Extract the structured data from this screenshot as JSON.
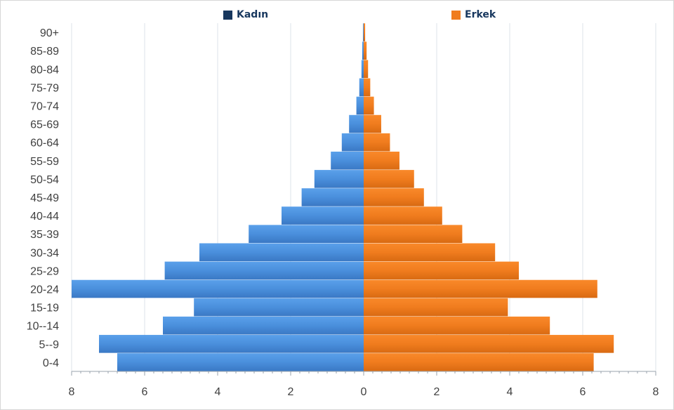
{
  "chart_data": {
    "type": "bar",
    "orientation": "horizontal",
    "layout": "population-pyramid",
    "categories": [
      "0-4",
      "5--9",
      "10--14",
      "15-19",
      "20-24",
      "25-29",
      "30-34",
      "35-39",
      "40-44",
      "45-49",
      "50-54",
      "55-59",
      "60-64",
      "65-69",
      "70-74",
      "75-79",
      "80-84",
      "85-89",
      "90+"
    ],
    "series": [
      {
        "name": "Kadın",
        "color": "#4a8fdc",
        "side": "left",
        "values": [
          6.75,
          7.25,
          5.5,
          4.65,
          8.0,
          5.45,
          4.5,
          3.15,
          2.25,
          1.7,
          1.35,
          0.9,
          0.6,
          0.4,
          0.2,
          0.12,
          0.06,
          0.04,
          0.02
        ]
      },
      {
        "name": "Erkek",
        "color": "#f07c1e",
        "side": "right",
        "values": [
          6.3,
          6.85,
          5.1,
          3.95,
          6.4,
          4.25,
          3.6,
          2.7,
          2.15,
          1.65,
          1.38,
          0.98,
          0.72,
          0.48,
          0.28,
          0.18,
          0.12,
          0.08,
          0.04
        ]
      }
    ],
    "xlim": [
      -8,
      8
    ],
    "xticks": [
      "8",
      "6",
      "4",
      "2",
      "0",
      "2",
      "4",
      "6",
      "8"
    ],
    "grid": true,
    "legend_position": "top"
  }
}
